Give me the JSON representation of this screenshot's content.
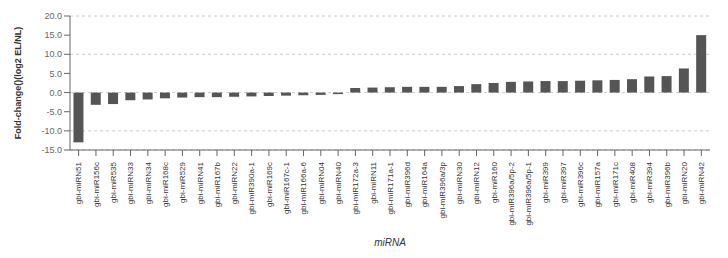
{
  "chart_data": {
    "type": "bar",
    "categories": [
      "gbi-miRN51",
      "gbi-miR156c",
      "gbi-miR535",
      "gbi-miRN33",
      "gbi-miRN34",
      "gbi-miR168c",
      "gbi-miR529",
      "gbi-miRN41",
      "gbi-miR167b",
      "gbi-miRN22",
      "gbi-miR390a-1",
      "gbi-miR169c",
      "gbi-miR167c-1",
      "gbi-miR166a-6",
      "gbi-miRN04",
      "gbi-miRN40",
      "gbi-miR172a-3",
      "gbi-miRN11",
      "gbi-miR171a-1",
      "gbi-miR396d",
      "gbi-miR164a",
      "gbi-miR396a/3p",
      "gbi-miRN30",
      "gbi-miRN12",
      "gbi-miR160",
      "gbi-miR396a/5p-2",
      "gbi-miR396a/5p-1",
      "gbi-miR399",
      "gbi-miR397",
      "gbi-miR396c",
      "gbi-miR157a",
      "gbi-miR171c",
      "gbi-miR408",
      "gbi-miR394",
      "gbi-miR396b",
      "gbi-miRN20",
      "gbi-miRN42"
    ],
    "values": [
      -13.0,
      -3.2,
      -3.0,
      -2.0,
      -1.8,
      -1.5,
      -1.3,
      -1.2,
      -1.2,
      -1.1,
      -1.0,
      -0.9,
      -0.8,
      -0.7,
      -0.6,
      -0.4,
      1.2,
      1.3,
      1.4,
      1.5,
      1.5,
      1.5,
      1.7,
      2.2,
      2.5,
      2.8,
      2.9,
      3.0,
      3.0,
      3.1,
      3.2,
      3.3,
      3.5,
      4.2,
      4.3,
      6.3,
      15.0
    ],
    "color": "#555555",
    "xlabel": "miRNA",
    "ylabel": "Fold-change()(log2 EL/NL)",
    "ylim": [
      -15.0,
      20.0
    ],
    "yticks": [
      {
        "value": -15.0,
        "label": "-15.0"
      },
      {
        "value": -10.0,
        "label": "-10.0"
      },
      {
        "value": -5.0,
        "label": "-5.0"
      },
      {
        "value": 0.0,
        "label": "0.0"
      },
      {
        "value": 5.0,
        "label": "5.0"
      },
      {
        "value": 10.0,
        "label": "10.0"
      },
      {
        "value": 15.0,
        "label": "15.0"
      },
      {
        "value": 20.0,
        "label": "20.0"
      }
    ],
    "grid": true
  }
}
